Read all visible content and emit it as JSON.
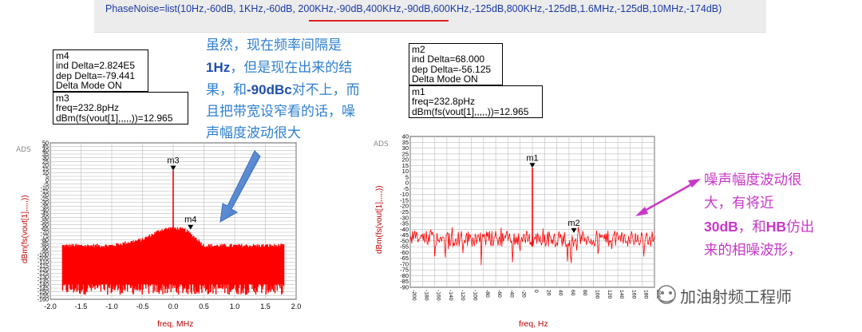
{
  "header": {
    "code_line": "PhaseNoise=list(10Hz,-60dB, 1KHz,-60dB, 200KHz,-90dB,400KHz,-90dB,600KHz,-125dB,800KHz,-125dB,1.6MHz,-125dB,10MHz,-174dB)"
  },
  "left_markers": {
    "m4": {
      "title": "m4",
      "line1": "ind Delta=2.824E5",
      "line2": "dep Delta=-79.441",
      "line3": "Delta Mode ON"
    },
    "m3": {
      "title": "m3",
      "line1": "freq=232.8pHz",
      "line2": "dBm(fs(vout[1],,,,,))=12.965"
    }
  },
  "right_markers": {
    "m2": {
      "title": "m2",
      "line1": "ind Delta=68.000",
      "line2": "dep Delta=-56.125",
      "line3": "Delta Mode ON"
    },
    "m1": {
      "title": "m1",
      "line1": "freq=232.8pHz",
      "line2": "dBm(fs(vout[1],,,,,))=12.965"
    }
  },
  "annotation_left": {
    "line1": "虽然，现在频率间隔是",
    "line2a": "1Hz",
    "line2b": "，但是现在出来的结",
    "line3a": "果，和",
    "line3b": "-90dBc",
    "line3c": "对不上，而",
    "line4": "且把带宽设窄看的话，噪",
    "line5": "声幅度波动很大",
    "color": "#2f7fd0",
    "highlight": "#1f4fb0"
  },
  "annotation_right": {
    "line1": "噪声幅度波动很",
    "line2": "大，有将近",
    "line3a": "30dB",
    "line3b": "，和",
    "line3c": "HB",
    "line3d": "仿出",
    "line4": "来的相噪波形，",
    "color": "#c838c8"
  },
  "watermark": "加油射频工程师",
  "chart_data": [
    {
      "type": "line",
      "ads_tag": "ADS",
      "xlabel": "freq, MHz",
      "ylabel": "dBm(fs(vout[1],,,,,))",
      "xlim": [
        -2.0,
        2.0
      ],
      "ylim": [
        -160,
        50
      ],
      "x_ticks": [
        "-2.0",
        "-1.5",
        "-1.0",
        "-0.5",
        "0.0",
        "0.5",
        "1.0",
        "1.5",
        "2.0"
      ],
      "y_ticks": [
        "50",
        "45",
        "40",
        "35",
        "30",
        "25",
        "20",
        "15",
        "10",
        "5",
        "0",
        "-5",
        "-10",
        "-15",
        "-20",
        "-25",
        "-30",
        "-35",
        "-40",
        "-45",
        "-50",
        "-55",
        "-60",
        "-65",
        "-70",
        "-75",
        "-80",
        "-85",
        "-90",
        "-95",
        "-100",
        "-105",
        "-110",
        "-115",
        "-120",
        "-125",
        "-130",
        "-135",
        "-140",
        "-145",
        "-150",
        "-155",
        "-160"
      ],
      "grid": true,
      "color": "#ff0000",
      "data_range_x": [
        -1.8,
        1.8
      ],
      "envelope": [
        [
          -1.8,
          -88
        ],
        [
          -1.0,
          -88
        ],
        [
          -0.5,
          -80
        ],
        [
          -0.2,
          -67
        ],
        [
          0,
          -64
        ],
        [
          0.2,
          -67
        ],
        [
          0.4,
          -80
        ],
        [
          0.5,
          -88
        ],
        [
          1.8,
          -88
        ]
      ],
      "noise_floor_bottom": -160,
      "markers": [
        {
          "name": "m3",
          "x": 0.0,
          "y": 12.965
        },
        {
          "name": "m4",
          "x": 0.2824,
          "y": -66.5
        }
      ]
    },
    {
      "type": "line",
      "ads_tag": "ADS",
      "xlabel": "freq, Hz",
      "ylabel": "dBm(fs(vout[1],,,,,))",
      "xlim": [
        -200,
        200
      ],
      "ylim": [
        -90,
        40
      ],
      "x_ticks": [
        "-200",
        "-180",
        "-160",
        "-140",
        "-120",
        "-100",
        "-80",
        "-60",
        "-40",
        "-20",
        "0",
        "20",
        "40",
        "60",
        "80",
        "100",
        "120",
        "140",
        "160",
        "180",
        "200"
      ],
      "y_ticks": [
        "40",
        "35",
        "30",
        "25",
        "20",
        "15",
        "10",
        "5",
        "0",
        "-5",
        "-10",
        "-15",
        "-20",
        "-25",
        "-30",
        "-35",
        "-40",
        "-45",
        "-50",
        "-55",
        "-60",
        "-65",
        "-70",
        "-75",
        "-80",
        "-85",
        "-90"
      ],
      "grid": true,
      "color": "#ff0000",
      "noise_center": -48,
      "markers": [
        {
          "name": "m1",
          "x": 0,
          "y": 12.965
        },
        {
          "name": "m2",
          "x": 68,
          "y": -43.16
        }
      ]
    }
  ]
}
